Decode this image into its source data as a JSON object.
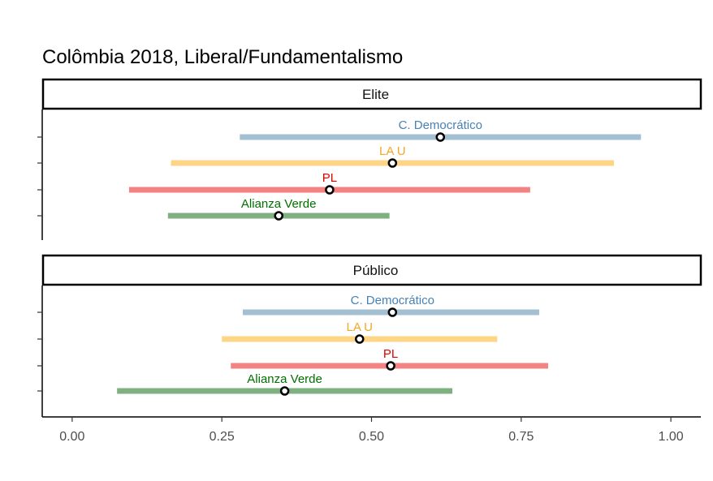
{
  "chart_data": {
    "type": "interval",
    "title": "Colômbia 2018, Liberal/Fundamentalismo",
    "xlim": [
      -0.05,
      1.05
    ],
    "x_ticks": [
      0.0,
      0.25,
      0.5,
      0.75,
      1.0
    ],
    "x_tick_labels": [
      "0.00",
      "0.25",
      "0.50",
      "0.75",
      "1.00"
    ],
    "parties": [
      {
        "name": "C. Democrático",
        "color": "#4682b4",
        "bar_color": "#a3bfd2"
      },
      {
        "name": "LA U",
        "color": "#f5a623",
        "bar_color": "#fdd585"
      },
      {
        "name": "PL",
        "color": "#e00000",
        "bar_color": "#f38383"
      },
      {
        "name": "Alianza Verde",
        "color": "#007000",
        "bar_color": "#7fb07f"
      }
    ],
    "panels": [
      {
        "strip": "Elite",
        "series": [
          {
            "party": "C. Democrático",
            "low": 0.28,
            "point": 0.615,
            "high": 0.95
          },
          {
            "party": "LA U",
            "low": 0.165,
            "point": 0.535,
            "high": 0.905
          },
          {
            "party": "PL",
            "low": 0.095,
            "point": 0.43,
            "high": 0.765
          },
          {
            "party": "Alianza Verde",
            "low": 0.16,
            "point": 0.345,
            "high": 0.53
          }
        ]
      },
      {
        "strip": "Público",
        "series": [
          {
            "party": "C. Democrático",
            "low": 0.285,
            "point": 0.535,
            "high": 0.78
          },
          {
            "party": "LA U",
            "low": 0.25,
            "point": 0.48,
            "high": 0.71
          },
          {
            "party": "PL",
            "low": 0.265,
            "point": 0.532,
            "high": 0.795
          },
          {
            "party": "Alianza Verde",
            "low": 0.075,
            "point": 0.355,
            "high": 0.635
          }
        ]
      }
    ]
  }
}
